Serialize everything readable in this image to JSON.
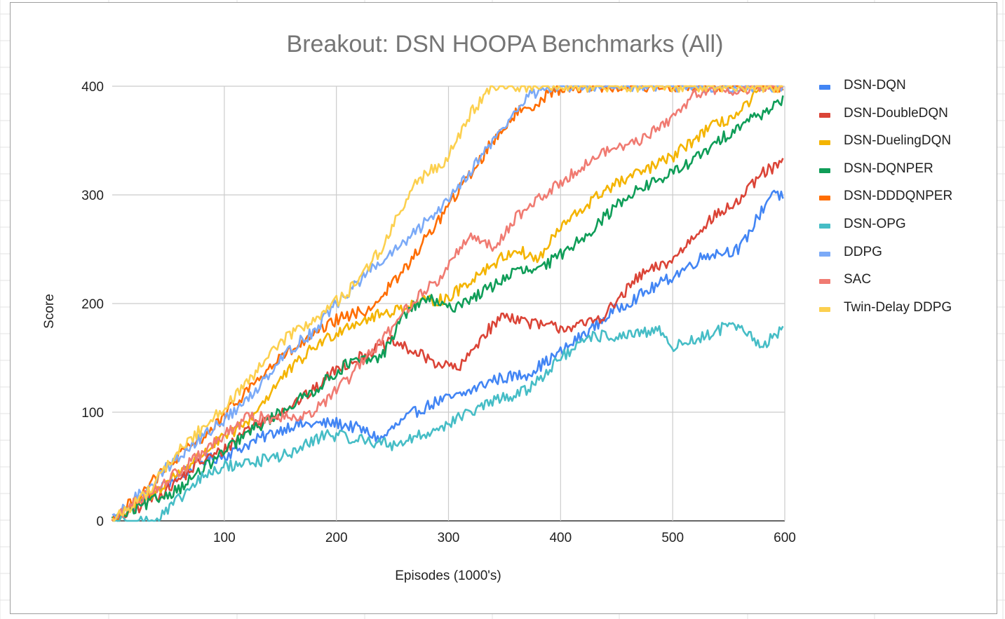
{
  "chart_data": {
    "type": "line",
    "title": "Breakout: DSN HOOPA Benchmarks (All)",
    "xlabel": "Episodes (1000's)",
    "ylabel": "Score",
    "xlim": [
      0,
      600
    ],
    "ylim": [
      0,
      400
    ],
    "xticks": [
      "100",
      "200",
      "300",
      "400",
      "500",
      "600"
    ],
    "yticks": [
      "0",
      "100",
      "200",
      "300",
      "400"
    ],
    "grid": true,
    "legend_position": "right",
    "series": [
      {
        "name": "DSN-DQN",
        "color": "#4285f4",
        "x": [
          0,
          20,
          50,
          80,
          100,
          130,
          160,
          200,
          220,
          240,
          250,
          270,
          290,
          310,
          340,
          370,
          400,
          450,
          500,
          530,
          560,
          590,
          600
        ],
        "y": [
          0,
          15,
          35,
          55,
          60,
          75,
          88,
          90,
          85,
          75,
          85,
          100,
          110,
          115,
          130,
          135,
          155,
          195,
          225,
          245,
          250,
          305,
          295
        ]
      },
      {
        "name": "DSN-DoubleDQN",
        "color": "#db4437",
        "x": [
          0,
          20,
          50,
          80,
          100,
          120,
          150,
          180,
          200,
          230,
          250,
          270,
          290,
          310,
          330,
          350,
          380,
          400,
          420,
          440,
          470,
          500,
          530,
          560,
          580,
          600
        ],
        "y": [
          0,
          10,
          30,
          55,
          65,
          85,
          100,
          120,
          140,
          155,
          165,
          155,
          145,
          140,
          170,
          190,
          180,
          178,
          180,
          190,
          225,
          240,
          275,
          295,
          320,
          330
        ]
      },
      {
        "name": "DSN-DuelingDQN",
        "color": "#f4b400",
        "x": [
          0,
          30,
          60,
          90,
          120,
          150,
          180,
          210,
          240,
          270,
          300,
          330,
          360,
          380,
          400,
          440,
          470,
          500,
          530,
          560,
          580,
          600
        ],
        "y": [
          0,
          20,
          45,
          70,
          90,
          130,
          160,
          180,
          190,
          200,
          205,
          230,
          250,
          240,
          270,
          305,
          320,
          335,
          360,
          375,
          400,
          400
        ]
      },
      {
        "name": "DSN-DQNPER",
        "color": "#0f9d58",
        "x": [
          0,
          30,
          60,
          90,
          120,
          150,
          180,
          210,
          240,
          260,
          280,
          300,
          330,
          360,
          380,
          400,
          430,
          460,
          500,
          530,
          560,
          580,
          600
        ],
        "y": [
          0,
          15,
          30,
          55,
          80,
          100,
          120,
          145,
          150,
          190,
          205,
          195,
          210,
          230,
          230,
          245,
          270,
          300,
          320,
          340,
          365,
          375,
          390
        ]
      },
      {
        "name": "DSN-DDDQNPER",
        "color": "#ff6d00",
        "x": [
          0,
          30,
          60,
          90,
          120,
          150,
          180,
          200,
          230,
          260,
          290,
          310,
          340,
          360,
          380,
          390,
          420,
          450,
          480,
          510,
          540,
          570,
          600
        ],
        "y": [
          0,
          30,
          60,
          85,
          120,
          150,
          170,
          185,
          195,
          230,
          275,
          305,
          350,
          375,
          385,
          395,
          400,
          400,
          400,
          400,
          400,
          400,
          400
        ]
      },
      {
        "name": "DSN-OPG",
        "color": "#46bdc6",
        "x": [
          0,
          20,
          40,
          60,
          80,
          100,
          130,
          160,
          190,
          220,
          250,
          280,
          310,
          340,
          370,
          400,
          430,
          460,
          490,
          500,
          530,
          550,
          570,
          580,
          600
        ],
        "y": [
          0,
          0,
          0,
          20,
          40,
          50,
          55,
          62,
          80,
          75,
          70,
          80,
          95,
          110,
          120,
          150,
          170,
          170,
          175,
          160,
          170,
          180,
          170,
          160,
          180
        ]
      },
      {
        "name": "DDPG",
        "color": "#7baaf7",
        "x": [
          0,
          30,
          60,
          90,
          120,
          150,
          180,
          200,
          230,
          260,
          290,
          310,
          340,
          370,
          390,
          410,
          440,
          470,
          500,
          530,
          570,
          600
        ],
        "y": [
          0,
          30,
          60,
          85,
          110,
          150,
          175,
          200,
          230,
          255,
          285,
          310,
          350,
          390,
          400,
          400,
          400,
          400,
          400,
          400,
          400,
          400
        ]
      },
      {
        "name": "SAC",
        "color": "#f07b72",
        "x": [
          0,
          30,
          60,
          90,
          120,
          150,
          180,
          210,
          240,
          270,
          290,
          320,
          340,
          360,
          380,
          410,
          440,
          470,
          500,
          520,
          550,
          580,
          600
        ],
        "y": [
          0,
          25,
          45,
          70,
          95,
          95,
          100,
          130,
          165,
          205,
          220,
          265,
          250,
          280,
          295,
          320,
          340,
          350,
          370,
          395,
          395,
          400,
          400
        ]
      },
      {
        "name": "Twin-Delay DDPG",
        "color": "#fcd04f",
        "x": [
          0,
          30,
          60,
          90,
          120,
          150,
          180,
          210,
          240,
          270,
          300,
          320,
          340,
          370,
          400,
          450,
          500,
          550,
          600
        ],
        "y": [
          0,
          25,
          65,
          95,
          125,
          165,
          185,
          210,
          250,
          310,
          335,
          375,
          400,
          400,
          400,
          400,
          400,
          400,
          400
        ]
      }
    ]
  }
}
